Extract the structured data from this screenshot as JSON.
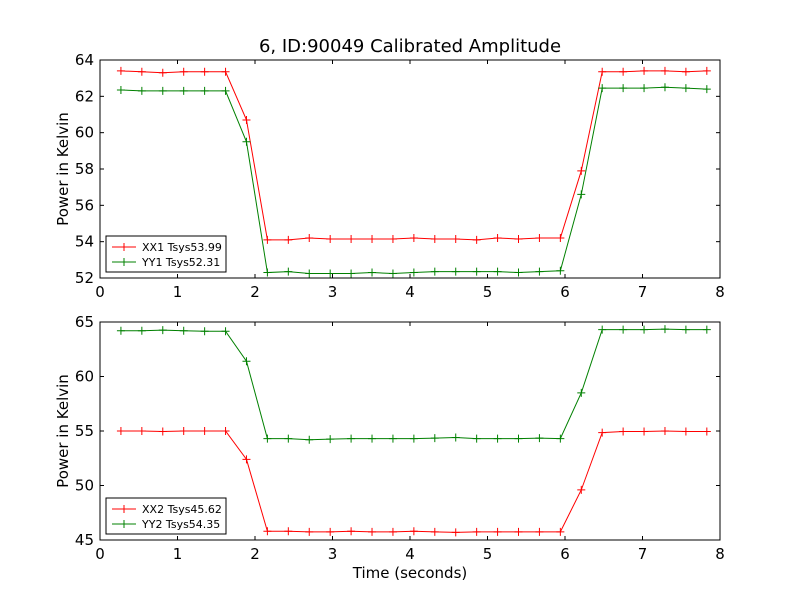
{
  "title": "6, ID:90049 Calibrated Amplitude",
  "chart_data": [
    {
      "type": "line",
      "ylabel": "Power in Kelvin",
      "xlabel": "",
      "xlim": [
        0,
        8
      ],
      "ylim": [
        52,
        64
      ],
      "xticks": [
        "0",
        "1",
        "2",
        "3",
        "4",
        "5",
        "6",
        "7",
        "8"
      ],
      "yticks": [
        "52",
        "54",
        "56",
        "58",
        "60",
        "62",
        "64"
      ],
      "xtick_values": [
        0,
        1,
        2,
        3,
        4,
        5,
        6,
        7,
        8
      ],
      "ytick_values": [
        52,
        54,
        56,
        58,
        60,
        62,
        64
      ],
      "legend_position": "lower-left",
      "x": [
        0.27,
        0.54,
        0.81,
        1.08,
        1.35,
        1.62,
        1.89,
        2.16,
        2.43,
        2.7,
        2.97,
        3.24,
        3.51,
        3.78,
        4.05,
        4.32,
        4.59,
        4.86,
        5.13,
        5.4,
        5.67,
        5.94,
        6.21,
        6.48,
        6.75,
        7.02,
        7.29,
        7.56,
        7.83
      ],
      "series": [
        {
          "name": "XX1 Tsys53.99",
          "color": "#ff0000",
          "values": [
            63.4,
            63.35,
            63.3,
            63.35,
            63.35,
            63.35,
            60.7,
            54.1,
            54.1,
            54.2,
            54.15,
            54.15,
            54.15,
            54.15,
            54.2,
            54.15,
            54.15,
            54.1,
            54.2,
            54.15,
            54.2,
            54.2,
            57.9,
            63.35,
            63.35,
            63.4,
            63.4,
            63.35,
            63.4
          ]
        },
        {
          "name": "YY1 Tsys52.31",
          "color": "#008000",
          "values": [
            62.35,
            62.3,
            62.3,
            62.3,
            62.3,
            62.3,
            59.5,
            52.3,
            52.35,
            52.25,
            52.25,
            52.25,
            52.3,
            52.25,
            52.3,
            52.35,
            52.35,
            52.35,
            52.35,
            52.3,
            52.35,
            52.4,
            56.6,
            62.45,
            62.45,
            62.45,
            62.5,
            62.45,
            62.4
          ]
        }
      ]
    },
    {
      "type": "line",
      "ylabel": "Power in Kelvin",
      "xlabel": "Time (seconds)",
      "xlim": [
        0,
        8
      ],
      "ylim": [
        45,
        65
      ],
      "xticks": [
        "0",
        "1",
        "2",
        "3",
        "4",
        "5",
        "6",
        "7",
        "8"
      ],
      "yticks": [
        "45",
        "50",
        "55",
        "60",
        "65"
      ],
      "xtick_values": [
        0,
        1,
        2,
        3,
        4,
        5,
        6,
        7,
        8
      ],
      "ytick_values": [
        45,
        50,
        55,
        60,
        65
      ],
      "legend_position": "lower-left",
      "x": [
        0.27,
        0.54,
        0.81,
        1.08,
        1.35,
        1.62,
        1.89,
        2.16,
        2.43,
        2.7,
        2.97,
        3.24,
        3.51,
        3.78,
        4.05,
        4.32,
        4.59,
        4.86,
        5.13,
        5.4,
        5.67,
        5.94,
        6.21,
        6.48,
        6.75,
        7.02,
        7.29,
        7.56,
        7.83
      ],
      "series": [
        {
          "name": "XX2 Tsys45.62",
          "color": "#ff0000",
          "values": [
            55.0,
            55.0,
            54.95,
            55.0,
            55.0,
            55.0,
            52.4,
            45.8,
            45.8,
            45.75,
            45.75,
            45.8,
            45.75,
            45.75,
            45.8,
            45.75,
            45.7,
            45.75,
            45.75,
            45.75,
            45.75,
            45.75,
            49.6,
            54.85,
            54.95,
            54.95,
            55.0,
            54.95,
            54.95
          ]
        },
        {
          "name": "YY2 Tsys54.35",
          "color": "#008000",
          "values": [
            64.2,
            64.2,
            64.25,
            64.2,
            64.15,
            64.15,
            61.4,
            54.3,
            54.3,
            54.2,
            54.25,
            54.3,
            54.3,
            54.3,
            54.3,
            54.35,
            54.4,
            54.3,
            54.3,
            54.3,
            54.35,
            54.3,
            58.5,
            64.3,
            64.3,
            64.3,
            64.35,
            64.3,
            64.3
          ]
        }
      ]
    }
  ]
}
